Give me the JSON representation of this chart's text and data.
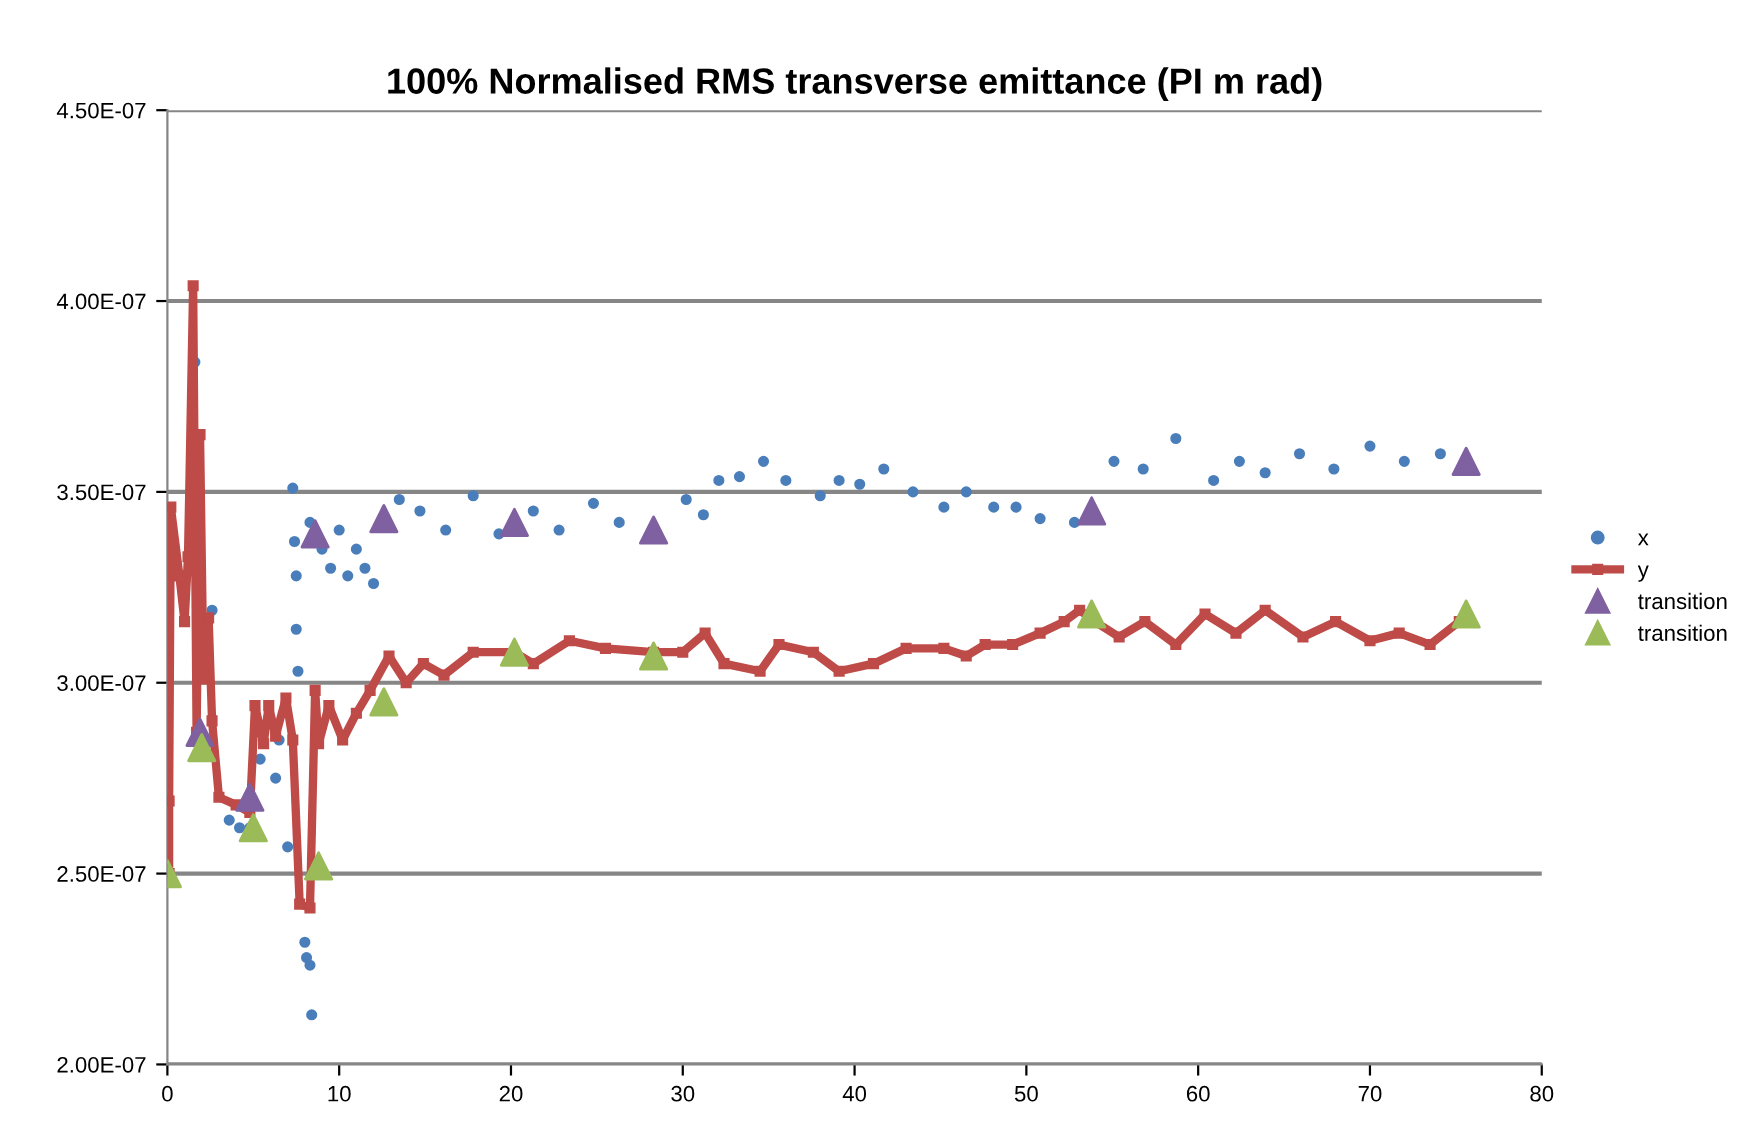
{
  "chart_data": {
    "type": "line",
    "title": "100% Normalised RMS transverse emittance (PI m rad)",
    "xlim": [
      0,
      80
    ],
    "xticks": [
      0,
      10,
      20,
      30,
      40,
      50,
      60,
      70,
      80
    ],
    "ylim": [
      2e-07,
      4.5e-07
    ],
    "yticks": [
      {
        "value": 2e-07,
        "label": "2.00E-07"
      },
      {
        "value": 2.5e-07,
        "label": "2.50E-07"
      },
      {
        "value": 3e-07,
        "label": "3.00E-07"
      },
      {
        "value": 3.5e-07,
        "label": "3.50E-07"
      },
      {
        "value": 4e-07,
        "label": "4.00E-07"
      },
      {
        "value": 4.5e-07,
        "label": "4.50E-07"
      }
    ],
    "grid": "y",
    "legend": "right",
    "series": [
      {
        "name": "x",
        "type": "scatter",
        "marker": "circle",
        "color": "#4a7ebb",
        "x": [
          1.6,
          2.6,
          3.6,
          4.2,
          4.8,
          5.4,
          6.5,
          6.3,
          7.3,
          7.4,
          7.5,
          7.5,
          7.6,
          7.0,
          8.0,
          8.1,
          8.3,
          8.4,
          8.3,
          9.0,
          9.5,
          10.0,
          10.5,
          11.0,
          11.5,
          12.0,
          13.5,
          14.7,
          16.2,
          17.8,
          19.3,
          21.3,
          22.8,
          24.8,
          26.3,
          30.2,
          31.2,
          32.1,
          33.3,
          34.7,
          36.0,
          38.0,
          39.1,
          40.3,
          41.7,
          43.4,
          45.2,
          46.5,
          48.1,
          49.4,
          50.8,
          52.8,
          55.1,
          56.8,
          58.7,
          60.9,
          62.4,
          63.9,
          65.9,
          67.9,
          70.0,
          72.0,
          74.1
        ],
        "values": [
          3.84e-07,
          3.19e-07,
          2.64e-07,
          2.62e-07,
          2.62e-07,
          2.8e-07,
          2.85e-07,
          2.75e-07,
          3.51e-07,
          3.37e-07,
          3.28e-07,
          3.14e-07,
          3.03e-07,
          2.57e-07,
          2.32e-07,
          2.28e-07,
          2.26e-07,
          2.13e-07,
          3.42e-07,
          3.35e-07,
          3.3e-07,
          3.4e-07,
          3.28e-07,
          3.35e-07,
          3.3e-07,
          3.26e-07,
          3.48e-07,
          3.45e-07,
          3.4e-07,
          3.49e-07,
          3.39e-07,
          3.45e-07,
          3.4e-07,
          3.47e-07,
          3.42e-07,
          3.48e-07,
          3.44e-07,
          3.53e-07,
          3.54e-07,
          3.58e-07,
          3.53e-07,
          3.49e-07,
          3.53e-07,
          3.52e-07,
          3.56e-07,
          3.5e-07,
          3.46e-07,
          3.5e-07,
          3.46e-07,
          3.46e-07,
          3.43e-07,
          3.42e-07,
          3.58e-07,
          3.56e-07,
          3.64e-07,
          3.53e-07,
          3.58e-07,
          3.55e-07,
          3.6e-07,
          3.56e-07,
          3.62e-07,
          3.58e-07,
          3.6e-07
        ]
      },
      {
        "name": "y",
        "marker": "square",
        "line_style": "solid",
        "color": "#be4b48",
        "x": [
          0.1,
          0.1,
          0.2,
          0.7,
          1.0,
          1.2,
          1.5,
          1.7,
          1.9,
          2.1,
          2.4,
          2.6,
          3.0,
          4.0,
          4.8,
          5.1,
          5.6,
          5.9,
          6.3,
          6.9,
          7.3,
          7.7,
          8.3,
          8.6,
          8.8,
          9.4,
          10.2,
          11.0,
          11.8,
          12.9,
          13.9,
          14.9,
          16.1,
          17.8,
          20.2,
          21.3,
          23.4,
          25.5,
          28.3,
          30.0,
          31.3,
          32.4,
          34.5,
          35.6,
          37.6,
          39.1,
          41.1,
          43.0,
          45.2,
          46.5,
          47.6,
          49.2,
          50.8,
          52.2,
          53.1,
          54.0,
          55.4,
          56.9,
          58.7,
          60.4,
          62.2,
          63.9,
          66.1,
          68.0,
          70.0,
          71.7,
          73.5,
          75.2
        ],
        "values": [
          2.5e-07,
          2.69e-07,
          3.46e-07,
          3.28e-07,
          3.16e-07,
          3.33e-07,
          4.04e-07,
          2.87e-07,
          3.65e-07,
          3.01e-07,
          3.17e-07,
          2.9e-07,
          2.7e-07,
          2.68e-07,
          2.66e-07,
          2.94e-07,
          2.84e-07,
          2.94e-07,
          2.86e-07,
          2.96e-07,
          2.85e-07,
          2.42e-07,
          2.41e-07,
          2.98e-07,
          2.84e-07,
          2.94e-07,
          2.85e-07,
          2.92e-07,
          2.98e-07,
          3.07e-07,
          3e-07,
          3.05e-07,
          3.02e-07,
          3.08e-07,
          3.08e-07,
          3.05e-07,
          3.11e-07,
          3.09e-07,
          3.08e-07,
          3.08e-07,
          3.13e-07,
          3.05e-07,
          3.03e-07,
          3.1e-07,
          3.08e-07,
          3.03e-07,
          3.05e-07,
          3.09e-07,
          3.09e-07,
          3.07e-07,
          3.1e-07,
          3.1e-07,
          3.13e-07,
          3.16e-07,
          3.19e-07,
          3.16e-07,
          3.12e-07,
          3.16e-07,
          3.1e-07,
          3.18e-07,
          3.13e-07,
          3.19e-07,
          3.12e-07,
          3.16e-07,
          3.11e-07,
          3.13e-07,
          3.1e-07,
          3.16e-07
        ]
      },
      {
        "name": "transition",
        "type": "scatter",
        "marker": "triangle",
        "color": "#7f60a0",
        "x": [
          1.9,
          4.8,
          8.6,
          12.6,
          20.2,
          28.3,
          53.8,
          75.6
        ],
        "values": [
          2.87e-07,
          2.7e-07,
          3.39e-07,
          3.43e-07,
          3.42e-07,
          3.4e-07,
          3.45e-07,
          3.58e-07
        ]
      },
      {
        "name": "transition",
        "type": "scatter",
        "marker": "triangle",
        "color": "#9bbb59",
        "x": [
          0,
          2.0,
          5.0,
          8.8,
          12.6,
          20.2,
          28.3,
          53.8,
          75.6
        ],
        "values": [
          2.5e-07,
          2.83e-07,
          2.62e-07,
          2.52e-07,
          2.95e-07,
          3.08e-07,
          3.07e-07,
          3.18e-07,
          3.18e-07
        ]
      }
    ]
  }
}
